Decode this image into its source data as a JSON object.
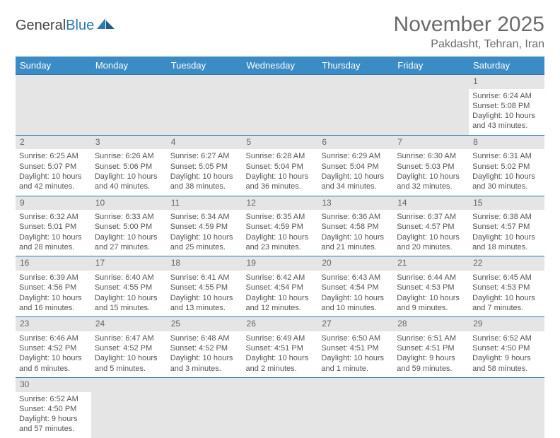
{
  "logo": {
    "text1": "General",
    "text2": "Blue"
  },
  "title": "November 2025",
  "location": "Pakdasht, Tehran, Iran",
  "headerBg": "#3b8bc4",
  "dayHeaders": [
    "Sunday",
    "Monday",
    "Tuesday",
    "Wednesday",
    "Thursday",
    "Friday",
    "Saturday"
  ],
  "weeks": [
    [
      null,
      null,
      null,
      null,
      null,
      null,
      {
        "n": "1",
        "sr": "6:24 AM",
        "ss": "5:08 PM",
        "dl": "10 hours and 43 minutes."
      }
    ],
    [
      {
        "n": "2",
        "sr": "6:25 AM",
        "ss": "5:07 PM",
        "dl": "10 hours and 42 minutes."
      },
      {
        "n": "3",
        "sr": "6:26 AM",
        "ss": "5:06 PM",
        "dl": "10 hours and 40 minutes."
      },
      {
        "n": "4",
        "sr": "6:27 AM",
        "ss": "5:05 PM",
        "dl": "10 hours and 38 minutes."
      },
      {
        "n": "5",
        "sr": "6:28 AM",
        "ss": "5:04 PM",
        "dl": "10 hours and 36 minutes."
      },
      {
        "n": "6",
        "sr": "6:29 AM",
        "ss": "5:04 PM",
        "dl": "10 hours and 34 minutes."
      },
      {
        "n": "7",
        "sr": "6:30 AM",
        "ss": "5:03 PM",
        "dl": "10 hours and 32 minutes."
      },
      {
        "n": "8",
        "sr": "6:31 AM",
        "ss": "5:02 PM",
        "dl": "10 hours and 30 minutes."
      }
    ],
    [
      {
        "n": "9",
        "sr": "6:32 AM",
        "ss": "5:01 PM",
        "dl": "10 hours and 28 minutes."
      },
      {
        "n": "10",
        "sr": "6:33 AM",
        "ss": "5:00 PM",
        "dl": "10 hours and 27 minutes."
      },
      {
        "n": "11",
        "sr": "6:34 AM",
        "ss": "4:59 PM",
        "dl": "10 hours and 25 minutes."
      },
      {
        "n": "12",
        "sr": "6:35 AM",
        "ss": "4:59 PM",
        "dl": "10 hours and 23 minutes."
      },
      {
        "n": "13",
        "sr": "6:36 AM",
        "ss": "4:58 PM",
        "dl": "10 hours and 21 minutes."
      },
      {
        "n": "14",
        "sr": "6:37 AM",
        "ss": "4:57 PM",
        "dl": "10 hours and 20 minutes."
      },
      {
        "n": "15",
        "sr": "6:38 AM",
        "ss": "4:57 PM",
        "dl": "10 hours and 18 minutes."
      }
    ],
    [
      {
        "n": "16",
        "sr": "6:39 AM",
        "ss": "4:56 PM",
        "dl": "10 hours and 16 minutes."
      },
      {
        "n": "17",
        "sr": "6:40 AM",
        "ss": "4:55 PM",
        "dl": "10 hours and 15 minutes."
      },
      {
        "n": "18",
        "sr": "6:41 AM",
        "ss": "4:55 PM",
        "dl": "10 hours and 13 minutes."
      },
      {
        "n": "19",
        "sr": "6:42 AM",
        "ss": "4:54 PM",
        "dl": "10 hours and 12 minutes."
      },
      {
        "n": "20",
        "sr": "6:43 AM",
        "ss": "4:54 PM",
        "dl": "10 hours and 10 minutes."
      },
      {
        "n": "21",
        "sr": "6:44 AM",
        "ss": "4:53 PM",
        "dl": "10 hours and 9 minutes."
      },
      {
        "n": "22",
        "sr": "6:45 AM",
        "ss": "4:53 PM",
        "dl": "10 hours and 7 minutes."
      }
    ],
    [
      {
        "n": "23",
        "sr": "6:46 AM",
        "ss": "4:52 PM",
        "dl": "10 hours and 6 minutes."
      },
      {
        "n": "24",
        "sr": "6:47 AM",
        "ss": "4:52 PM",
        "dl": "10 hours and 5 minutes."
      },
      {
        "n": "25",
        "sr": "6:48 AM",
        "ss": "4:52 PM",
        "dl": "10 hours and 3 minutes."
      },
      {
        "n": "26",
        "sr": "6:49 AM",
        "ss": "4:51 PM",
        "dl": "10 hours and 2 minutes."
      },
      {
        "n": "27",
        "sr": "6:50 AM",
        "ss": "4:51 PM",
        "dl": "10 hours and 1 minute."
      },
      {
        "n": "28",
        "sr": "6:51 AM",
        "ss": "4:51 PM",
        "dl": "9 hours and 59 minutes."
      },
      {
        "n": "29",
        "sr": "6:52 AM",
        "ss": "4:50 PM",
        "dl": "9 hours and 58 minutes."
      }
    ],
    [
      {
        "n": "30",
        "sr": "6:52 AM",
        "ss": "4:50 PM",
        "dl": "9 hours and 57 minutes."
      },
      null,
      null,
      null,
      null,
      null,
      null
    ]
  ],
  "labels": {
    "sunrise": "Sunrise:",
    "sunset": "Sunset:",
    "daylight": "Daylight:"
  }
}
